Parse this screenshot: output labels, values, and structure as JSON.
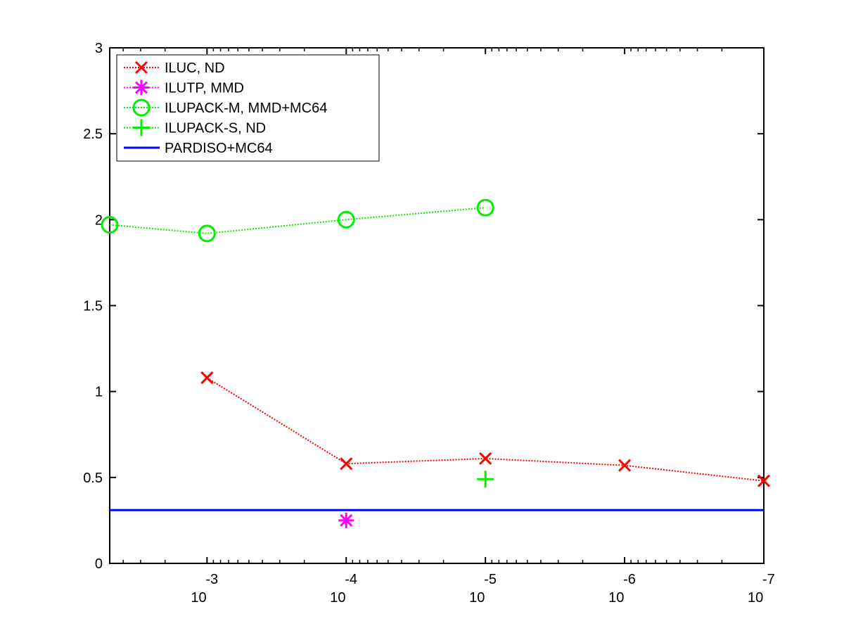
{
  "chart_data": {
    "type": "line",
    "x_scale": "log",
    "x_reversed": true,
    "xlim": [
      0.005,
      1e-07
    ],
    "ylim": [
      0,
      3
    ],
    "grid": false,
    "legend_position": "top-left",
    "x_ticks": [
      {
        "value": 0.001,
        "base": "10",
        "exp": "-3"
      },
      {
        "value": 0.0001,
        "base": "10",
        "exp": "-4"
      },
      {
        "value": 1e-05,
        "base": "10",
        "exp": "-5"
      },
      {
        "value": 1e-06,
        "base": "10",
        "exp": "-6"
      },
      {
        "value": 1e-07,
        "base": "10",
        "exp": "-7"
      }
    ],
    "y_ticks": [
      {
        "value": 0,
        "label": "0"
      },
      {
        "value": 0.5,
        "label": "0.5"
      },
      {
        "value": 1,
        "label": "1"
      },
      {
        "value": 1.5,
        "label": "1.5"
      },
      {
        "value": 2,
        "label": "2"
      },
      {
        "value": 2.5,
        "label": "2.5"
      },
      {
        "value": 3,
        "label": "3"
      }
    ],
    "series": [
      {
        "name": "ILUC,  ND",
        "color": "#ff0000",
        "marker": "x",
        "line_style": "dotted",
        "points": [
          [
            0.001,
            1.08
          ],
          [
            0.0001,
            0.58
          ],
          [
            1e-05,
            0.61
          ],
          [
            1e-06,
            0.57
          ],
          [
            1e-07,
            0.48
          ]
        ]
      },
      {
        "name": "ILUTP, MMD",
        "color": "#ff00ff",
        "marker": "asterisk",
        "line_style": "dotted",
        "points": [
          [
            0.0001,
            0.25
          ]
        ]
      },
      {
        "name": "ILUPACK-M, MMD+MC64",
        "color": "#00ee00",
        "marker": "circle",
        "line_style": "dotted",
        "points": [
          [
            0.005,
            1.97
          ],
          [
            0.001,
            1.92
          ],
          [
            0.0001,
            2.0
          ],
          [
            1e-05,
            2.07
          ]
        ]
      },
      {
        "name": "ILUPACK-S, ND",
        "color": "#00ee00",
        "marker": "plus",
        "line_style": "dotted",
        "points": [
          [
            1e-05,
            0.49
          ]
        ]
      },
      {
        "name": "PARDISO+MC64",
        "color": "#0000ff",
        "marker": "none",
        "line_style": "solid",
        "points": [
          [
            0.005,
            0.31
          ],
          [
            1e-07,
            0.31
          ]
        ]
      }
    ]
  }
}
